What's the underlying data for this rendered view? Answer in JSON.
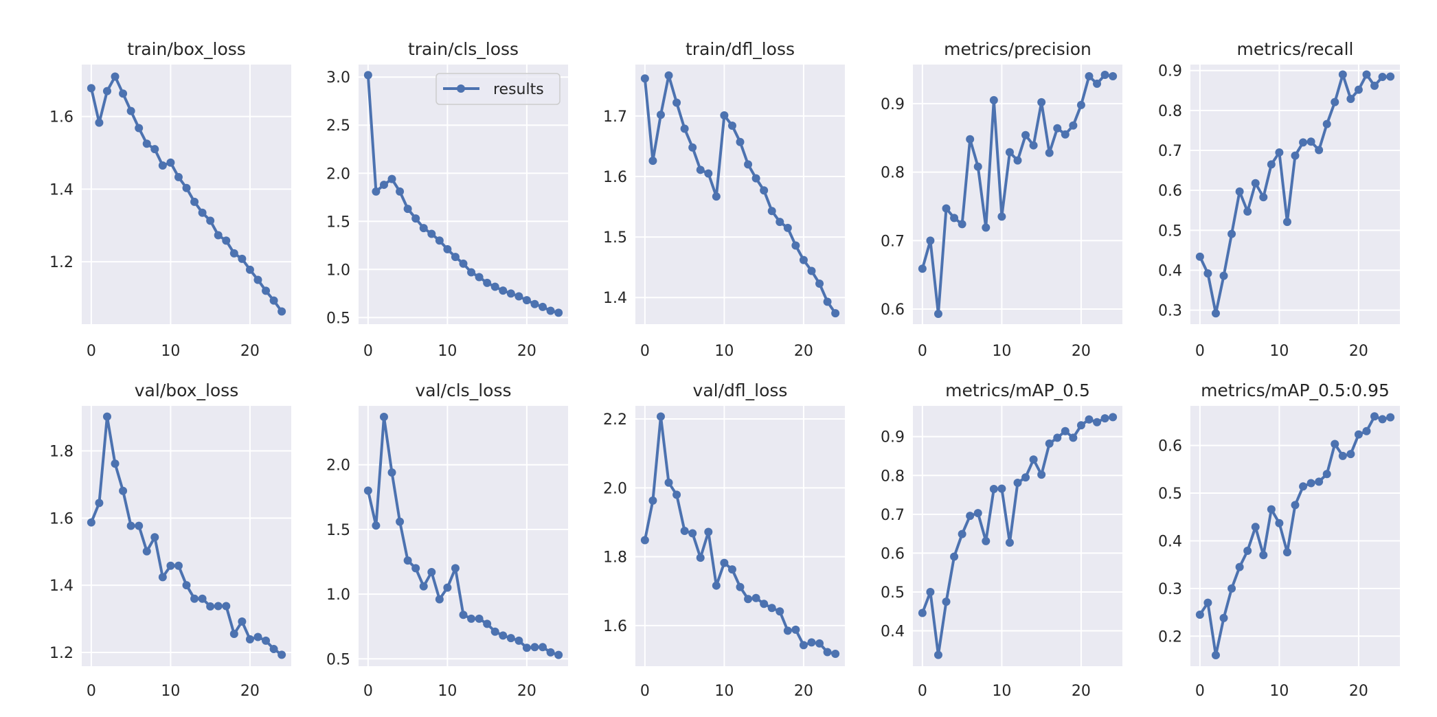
{
  "style": {
    "line_color": "#4C72B0",
    "plot_bg": "#EAEAF2",
    "grid_color": "#FFFFFF",
    "text_color": "#262626"
  },
  "legend": {
    "label": "results",
    "placement": "upper-right of train/cls_loss"
  },
  "chart_data": [
    {
      "type": "line",
      "title": "train/box_loss",
      "grid": true,
      "xlim": [
        -1.2,
        25.2
      ],
      "ylim": [
        1.028,
        1.743
      ],
      "xticks": [
        0,
        10,
        20
      ],
      "yticks": [
        1.2,
        1.4,
        1.6
      ],
      "ytick_labels": [
        "1.2",
        "1.4",
        "1.6"
      ],
      "x": [
        0,
        1,
        2,
        3,
        4,
        5,
        6,
        7,
        8,
        9,
        10,
        11,
        12,
        13,
        14,
        15,
        16,
        17,
        18,
        19,
        20,
        21,
        22,
        23,
        24
      ],
      "series": [
        {
          "name": "results",
          "values": [
            1.678,
            1.583,
            1.67,
            1.71,
            1.663,
            1.615,
            1.568,
            1.525,
            1.51,
            1.465,
            1.473,
            1.433,
            1.403,
            1.365,
            1.335,
            1.313,
            1.273,
            1.258,
            1.223,
            1.208,
            1.178,
            1.15,
            1.12,
            1.093,
            1.063
          ]
        }
      ]
    },
    {
      "type": "line",
      "title": "train/cls_loss",
      "grid": true,
      "xlim": [
        -1.2,
        25.2
      ],
      "ylim": [
        0.431,
        3.13
      ],
      "xticks": [
        0,
        10,
        20
      ],
      "yticks": [
        0.5,
        1.0,
        1.5,
        2.0,
        2.5,
        3.0
      ],
      "ytick_labels": [
        "0.5",
        "1.0",
        "1.5",
        "2.0",
        "2.5",
        "3.0"
      ],
      "x": [
        0,
        1,
        2,
        3,
        4,
        5,
        6,
        7,
        8,
        9,
        10,
        11,
        12,
        13,
        14,
        15,
        16,
        17,
        18,
        19,
        20,
        21,
        22,
        23,
        24
      ],
      "series": [
        {
          "name": "results",
          "values": [
            3.02,
            1.81,
            1.88,
            1.94,
            1.81,
            1.63,
            1.53,
            1.43,
            1.37,
            1.3,
            1.21,
            1.13,
            1.06,
            0.97,
            0.92,
            0.86,
            0.82,
            0.78,
            0.75,
            0.72,
            0.68,
            0.64,
            0.61,
            0.57,
            0.55
          ]
        }
      ]
    },
    {
      "type": "line",
      "title": "train/dfl_loss",
      "grid": true,
      "xlim": [
        -1.2,
        25.2
      ],
      "ylim": [
        1.356,
        1.785
      ],
      "xticks": [
        0,
        10,
        20
      ],
      "yticks": [
        1.4,
        1.5,
        1.6,
        1.7
      ],
      "ytick_labels": [
        "1.4",
        "1.5",
        "1.6",
        "1.7"
      ],
      "x": [
        0,
        1,
        2,
        3,
        4,
        5,
        6,
        7,
        8,
        9,
        10,
        11,
        12,
        13,
        14,
        15,
        16,
        17,
        18,
        19,
        20,
        21,
        22,
        23,
        24
      ],
      "series": [
        {
          "name": "results",
          "values": [
            1.762,
            1.626,
            1.702,
            1.767,
            1.722,
            1.679,
            1.648,
            1.611,
            1.605,
            1.567,
            1.701,
            1.684,
            1.657,
            1.62,
            1.597,
            1.577,
            1.543,
            1.525,
            1.515,
            1.486,
            1.462,
            1.444,
            1.423,
            1.393,
            1.374
          ]
        }
      ]
    },
    {
      "type": "line",
      "title": "metrics/precision",
      "grid": true,
      "xlim": [
        -1.2,
        25.2
      ],
      "ylim": [
        0.578,
        0.957
      ],
      "xticks": [
        0,
        10,
        20
      ],
      "yticks": [
        0.6,
        0.7,
        0.8,
        0.9
      ],
      "ytick_labels": [
        "0.6",
        "0.7",
        "0.8",
        "0.9"
      ],
      "x": [
        0,
        1,
        2,
        3,
        4,
        5,
        6,
        7,
        8,
        9,
        10,
        11,
        12,
        13,
        14,
        15,
        16,
        17,
        18,
        19,
        20,
        21,
        22,
        23,
        24
      ],
      "series": [
        {
          "name": "results",
          "values": [
            0.659,
            0.7,
            0.593,
            0.747,
            0.733,
            0.724,
            0.848,
            0.808,
            0.719,
            0.905,
            0.735,
            0.829,
            0.817,
            0.854,
            0.839,
            0.902,
            0.828,
            0.864,
            0.855,
            0.868,
            0.898,
            0.94,
            0.929,
            0.942,
            0.94
          ]
        }
      ]
    },
    {
      "type": "line",
      "title": "metrics/recall",
      "grid": true,
      "xlim": [
        -1.2,
        25.2
      ],
      "ylim": [
        0.265,
        0.915
      ],
      "xticks": [
        0,
        10,
        20
      ],
      "yticks": [
        0.3,
        0.4,
        0.5,
        0.6,
        0.7,
        0.8,
        0.9
      ],
      "ytick_labels": [
        "0.3",
        "0.4",
        "0.5",
        "0.6",
        "0.7",
        "0.8",
        "0.9"
      ],
      "x": [
        0,
        1,
        2,
        3,
        4,
        5,
        6,
        7,
        8,
        9,
        10,
        11,
        12,
        13,
        14,
        15,
        16,
        17,
        18,
        19,
        20,
        21,
        22,
        23,
        24
      ],
      "series": [
        {
          "name": "results",
          "values": [
            0.434,
            0.392,
            0.292,
            0.386,
            0.491,
            0.597,
            0.547,
            0.618,
            0.583,
            0.665,
            0.695,
            0.521,
            0.687,
            0.72,
            0.722,
            0.701,
            0.766,
            0.821,
            0.89,
            0.829,
            0.852,
            0.89,
            0.862,
            0.884,
            0.885
          ]
        }
      ]
    },
    {
      "type": "line",
      "title": "val/box_loss",
      "grid": true,
      "xlim": [
        -1.2,
        25.2
      ],
      "ylim": [
        1.159,
        1.934
      ],
      "xticks": [
        0,
        10,
        20
      ],
      "yticks": [
        1.2,
        1.4,
        1.6,
        1.8
      ],
      "ytick_labels": [
        "1.2",
        "1.4",
        "1.6",
        "1.8"
      ],
      "x": [
        0,
        1,
        2,
        3,
        4,
        5,
        6,
        7,
        8,
        9,
        10,
        11,
        12,
        13,
        14,
        15,
        16,
        17,
        18,
        19,
        20,
        21,
        22,
        23,
        24
      ],
      "series": [
        {
          "name": "results",
          "values": [
            1.587,
            1.645,
            1.902,
            1.762,
            1.681,
            1.577,
            1.577,
            1.501,
            1.543,
            1.424,
            1.458,
            1.458,
            1.4,
            1.36,
            1.36,
            1.337,
            1.338,
            1.338,
            1.255,
            1.292,
            1.239,
            1.246,
            1.235,
            1.21,
            1.193
          ]
        }
      ]
    },
    {
      "type": "line",
      "title": "val/cls_loss",
      "grid": true,
      "xlim": [
        -1.2,
        25.2
      ],
      "ylim": [
        0.443,
        2.455
      ],
      "xticks": [
        0,
        10,
        20
      ],
      "yticks": [
        0.5,
        1.0,
        1.5,
        2.0
      ],
      "ytick_labels": [
        "0.5",
        "1.0",
        "1.5",
        "2.0"
      ],
      "x": [
        0,
        1,
        2,
        3,
        4,
        5,
        6,
        7,
        8,
        9,
        10,
        11,
        12,
        13,
        14,
        15,
        16,
        17,
        18,
        19,
        20,
        21,
        22,
        23,
        24
      ],
      "series": [
        {
          "name": "results",
          "values": [
            1.8,
            1.53,
            2.37,
            1.94,
            1.56,
            1.26,
            1.2,
            1.06,
            1.17,
            0.96,
            1.05,
            1.2,
            0.84,
            0.81,
            0.81,
            0.77,
            0.71,
            0.68,
            0.66,
            0.64,
            0.585,
            0.59,
            0.59,
            0.55,
            0.53
          ]
        }
      ]
    },
    {
      "type": "line",
      "title": "val/dfl_loss",
      "grid": true,
      "xlim": [
        -1.2,
        25.2
      ],
      "ylim": [
        1.482,
        2.238
      ],
      "xticks": [
        0,
        10,
        20
      ],
      "yticks": [
        1.6,
        1.8,
        2.0,
        2.2
      ],
      "ytick_labels": [
        "1.6",
        "1.8",
        "2.0",
        "2.2"
      ],
      "x": [
        0,
        1,
        2,
        3,
        4,
        5,
        6,
        7,
        8,
        9,
        10,
        11,
        12,
        13,
        14,
        15,
        16,
        17,
        18,
        19,
        20,
        21,
        22,
        23,
        24
      ],
      "series": [
        {
          "name": "results",
          "values": [
            1.848,
            1.963,
            2.207,
            2.015,
            1.98,
            1.875,
            1.868,
            1.797,
            1.872,
            1.716,
            1.782,
            1.763,
            1.712,
            1.677,
            1.68,
            1.663,
            1.651,
            1.641,
            1.585,
            1.588,
            1.543,
            1.551,
            1.548,
            1.523,
            1.518
          ]
        }
      ]
    },
    {
      "type": "line",
      "title": "metrics/mAP_0.5",
      "grid": true,
      "xlim": [
        -1.2,
        25.2
      ],
      "ylim": [
        0.309,
        0.979
      ],
      "xticks": [
        0,
        10,
        20
      ],
      "yticks": [
        0.4,
        0.5,
        0.6,
        0.7,
        0.8,
        0.9
      ],
      "ytick_labels": [
        "0.4",
        "0.5",
        "0.6",
        "0.7",
        "0.8",
        "0.9"
      ],
      "x": [
        0,
        1,
        2,
        3,
        4,
        5,
        6,
        7,
        8,
        9,
        10,
        11,
        12,
        13,
        14,
        15,
        16,
        17,
        18,
        19,
        20,
        21,
        22,
        23,
        24
      ],
      "series": [
        {
          "name": "results",
          "values": [
            0.446,
            0.5,
            0.338,
            0.475,
            0.591,
            0.649,
            0.696,
            0.703,
            0.631,
            0.765,
            0.766,
            0.627,
            0.781,
            0.795,
            0.841,
            0.802,
            0.882,
            0.897,
            0.914,
            0.897,
            0.929,
            0.944,
            0.937,
            0.947,
            0.95
          ]
        }
      ]
    },
    {
      "type": "line",
      "title": "metrics/mAP_0.5:0.95",
      "grid": true,
      "xlim": [
        -1.2,
        25.2
      ],
      "ylim": [
        0.137,
        0.683
      ],
      "xticks": [
        0,
        10,
        20
      ],
      "yticks": [
        0.2,
        0.3,
        0.4,
        0.5,
        0.6
      ],
      "ytick_labels": [
        "0.2",
        "0.3",
        "0.4",
        "0.5",
        "0.6"
      ],
      "x": [
        0,
        1,
        2,
        3,
        4,
        5,
        6,
        7,
        8,
        9,
        10,
        11,
        12,
        13,
        14,
        15,
        16,
        17,
        18,
        19,
        20,
        21,
        22,
        23,
        24
      ],
      "series": [
        {
          "name": "results",
          "values": [
            0.245,
            0.27,
            0.16,
            0.238,
            0.3,
            0.345,
            0.379,
            0.429,
            0.37,
            0.466,
            0.437,
            0.376,
            0.475,
            0.514,
            0.521,
            0.524,
            0.54,
            0.603,
            0.578,
            0.582,
            0.623,
            0.63,
            0.661,
            0.655,
            0.659
          ]
        }
      ]
    }
  ]
}
